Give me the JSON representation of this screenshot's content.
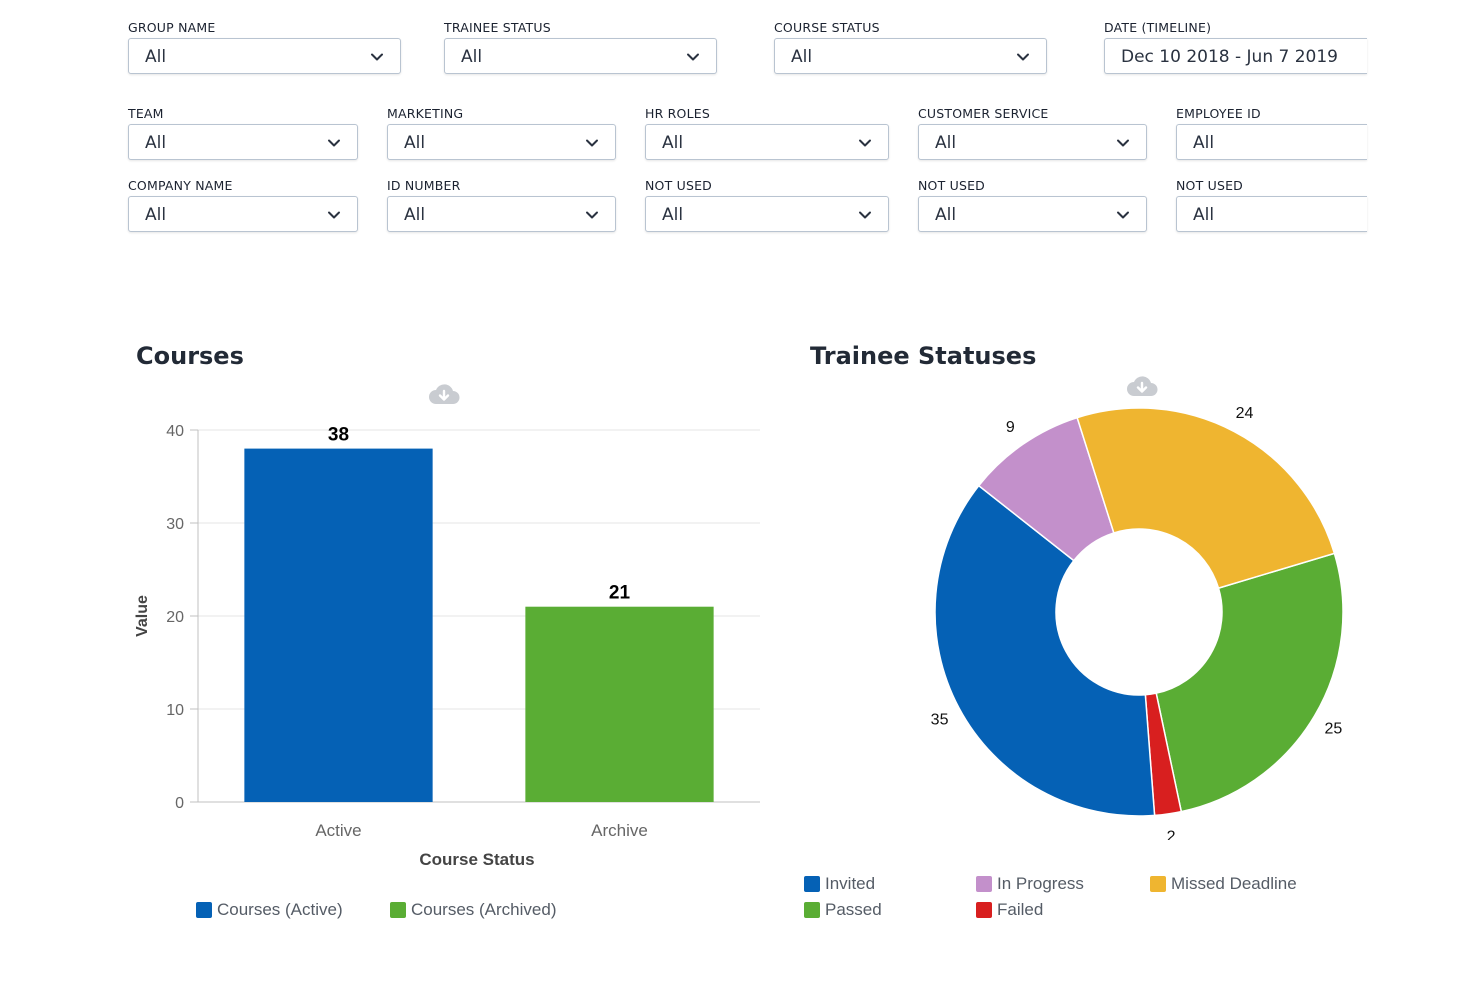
{
  "filters": [
    {
      "label": "GROUP NAME",
      "value": "All"
    },
    {
      "label": "TRAINEE STATUS",
      "value": "All"
    },
    {
      "label": "COURSE STATUS",
      "value": "All"
    },
    {
      "label": "DATE (TIMELINE)",
      "value": "Dec 10 2018 - Jun 7 2019"
    },
    {
      "label": "TEAM",
      "value": "All"
    },
    {
      "label": "MARKETING",
      "value": "All"
    },
    {
      "label": "HR ROLES",
      "value": "All"
    },
    {
      "label": "CUSTOMER SERVICE",
      "value": "All"
    },
    {
      "label": "EMPLOYEE ID",
      "value": "All"
    },
    {
      "label": "COMPANY NAME",
      "value": "All"
    },
    {
      "label": "ID NUMBER",
      "value": "All"
    },
    {
      "label": "NOT USED",
      "value": "All"
    },
    {
      "label": "NOT USED",
      "value": "All"
    },
    {
      "label": "NOT USED",
      "value": "All"
    }
  ],
  "icons": {
    "dropdown": "chevron-down-icon",
    "download": "cloud-download-icon"
  },
  "chart_data": [
    {
      "type": "bar",
      "title": "Courses",
      "xlabel": "Course Status",
      "ylabel": "Value",
      "categories": [
        "Active",
        "Archive"
      ],
      "values": [
        38,
        21
      ],
      "ylim": [
        0,
        40
      ],
      "yticks": [
        0,
        10,
        20,
        30,
        40
      ],
      "colors": [
        "#0561b5",
        "#5aad34"
      ],
      "grid": true,
      "legend": {
        "placement": "bottom",
        "entries": [
          {
            "name": "Courses (Active)",
            "color": "#0561b5"
          },
          {
            "name": "Courses (Archived)",
            "color": "#5aad34"
          }
        ]
      }
    },
    {
      "type": "pie",
      "title": "Trainee Statuses",
      "donut": true,
      "slices": [
        {
          "label": "Passed",
          "value": 25,
          "color": "#5aad34"
        },
        {
          "label": "Failed",
          "value": 2,
          "color": "#d81f1f"
        },
        {
          "label": "Invited",
          "value": 35,
          "color": "#0561b5"
        },
        {
          "label": "In Progress",
          "value": 9,
          "color": "#c390cb"
        },
        {
          "label": "Missed Deadline",
          "value": 24,
          "color": "#efb530"
        }
      ],
      "legend": {
        "placement": "bottom",
        "entries": [
          {
            "name": "Invited",
            "color": "#0561b5"
          },
          {
            "name": "In Progress",
            "color": "#c390cb"
          },
          {
            "name": "Missed Deadline",
            "color": "#efb530"
          },
          {
            "name": "Passed",
            "color": "#5aad34"
          },
          {
            "name": "Failed",
            "color": "#d81f1f"
          }
        ]
      }
    }
  ]
}
